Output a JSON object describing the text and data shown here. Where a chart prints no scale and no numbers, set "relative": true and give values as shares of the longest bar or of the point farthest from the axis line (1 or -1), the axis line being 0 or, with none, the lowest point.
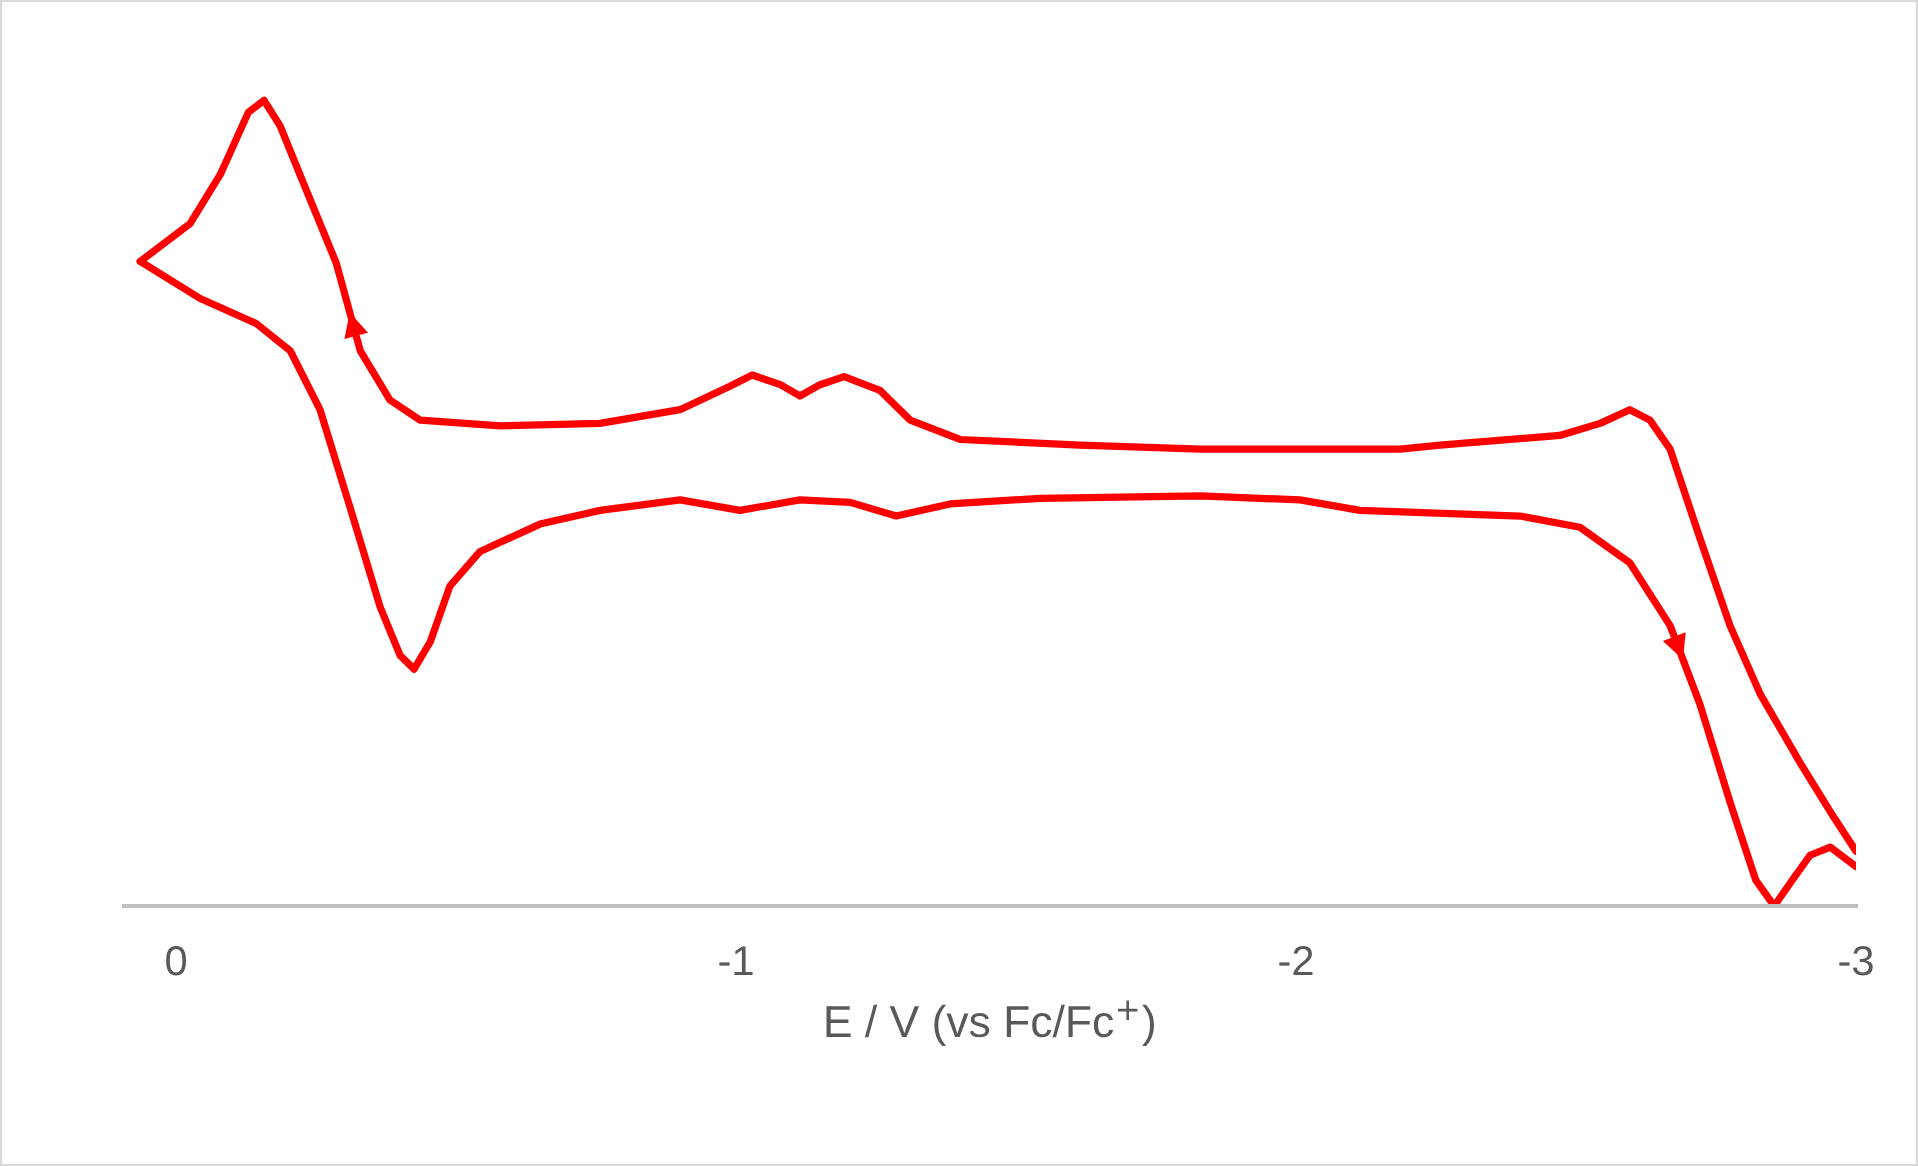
{
  "chart_data": {
    "type": "line",
    "relative": true,
    "xlabel": "E / V (vs Fc/Fc$^{+}$)",
    "xlim": [
      0.093,
      -3.0
    ],
    "xticks": [
      0,
      {
        "value": -1,
        "label": "-1"
      },
      {
        "value": -2,
        "label": "-2"
      },
      {
        "value": -3,
        "label": "-3"
      }
    ],
    "grid": false,
    "legend": false,
    "tick_labels": "x",
    "marker": "none",
    "line_style": "solid",
    "series": [
      {
        "color": "#ff0000",
        "x": [
          0.064,
          -0.043,
          -0.143,
          -0.204,
          -0.257,
          -0.311,
          -0.364,
          -0.4,
          -0.425,
          -0.454,
          -0.489,
          -0.543,
          -0.65,
          -0.757,
          -0.9,
          -1.007,
          -1.114,
          -1.204,
          -1.286,
          -1.382,
          -1.543,
          -1.829,
          -2.007,
          -2.114,
          -2.4,
          -2.507,
          -2.596,
          -2.668,
          -2.721,
          -2.775,
          -2.821,
          -2.854,
          -2.886,
          -2.918,
          -2.954,
          -3.0
        ],
        "values": [
          0.8,
          0.754,
          0.723,
          0.689,
          0.616,
          0.494,
          0.372,
          0.311,
          0.294,
          0.328,
          0.397,
          0.44,
          0.474,
          0.491,
          0.504,
          0.491,
          0.504,
          0.501,
          0.484,
          0.499,
          0.506,
          0.509,
          0.504,
          0.491,
          0.484,
          0.47,
          0.426,
          0.348,
          0.251,
          0.129,
          0.032,
          0.0,
          0.032,
          0.063,
          0.073,
          0.049
        ]
      },
      {
        "color": "#ff0000",
        "x": [
          -3.0,
          -2.954,
          -2.9,
          -2.829,
          -2.775,
          -2.721,
          -2.668,
          -2.632,
          -2.596,
          -2.543,
          -2.471,
          -2.257,
          -2.186,
          -2.043,
          -1.829,
          -1.614,
          -1.4,
          -1.311,
          -1.257,
          -1.193,
          -1.15,
          -1.114,
          -1.079,
          -1.029,
          -0.989,
          -0.9,
          -0.757,
          -0.579,
          -0.436,
          -0.382,
          -0.329,
          -0.286,
          -0.221,
          -0.186,
          -0.157,
          -0.129,
          -0.079,
          -0.025,
          0.064
        ],
        "values": [
          0.068,
          0.117,
          0.178,
          0.263,
          0.348,
          0.457,
          0.567,
          0.603,
          0.616,
          0.599,
          0.584,
          0.572,
          0.567,
          0.567,
          0.567,
          0.572,
          0.579,
          0.603,
          0.64,
          0.657,
          0.647,
          0.633,
          0.647,
          0.659,
          0.645,
          0.616,
          0.599,
          0.596,
          0.603,
          0.628,
          0.689,
          0.798,
          0.908,
          0.968,
          1.0,
          0.985,
          0.908,
          0.847,
          0.8
        ]
      }
    ]
  }
}
